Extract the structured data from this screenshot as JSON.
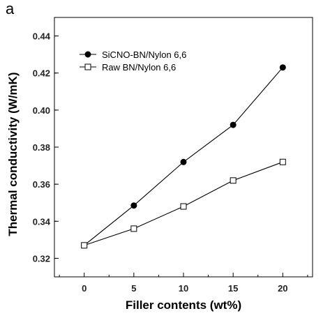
{
  "panel_label": "a",
  "chart_data": {
    "type": "line",
    "xlabel": "Filler contents (wt%)",
    "ylabel": "Thermal conductivity (W/mK)",
    "xlim": [
      -3,
      23
    ],
    "ylim": [
      0.31,
      0.45
    ],
    "xticks": [
      0,
      5,
      10,
      15,
      20
    ],
    "yticks": [
      0.32,
      0.34,
      0.36,
      0.38,
      0.4,
      0.42,
      0.44
    ],
    "ytick_format_decimals": 2,
    "legend_position": "top-left",
    "grid": false,
    "x": [
      0,
      5,
      10,
      15,
      20
    ],
    "series": [
      {
        "name": "SiCNO-BN/Nylon 6,6",
        "marker": "filled-circle",
        "values": [
          0.327,
          0.3485,
          0.372,
          0.392,
          0.423
        ]
      },
      {
        "name": "Raw BN/Nylon 6,6",
        "marker": "open-square",
        "values": [
          0.327,
          0.336,
          0.348,
          0.362,
          0.372
        ]
      }
    ]
  }
}
